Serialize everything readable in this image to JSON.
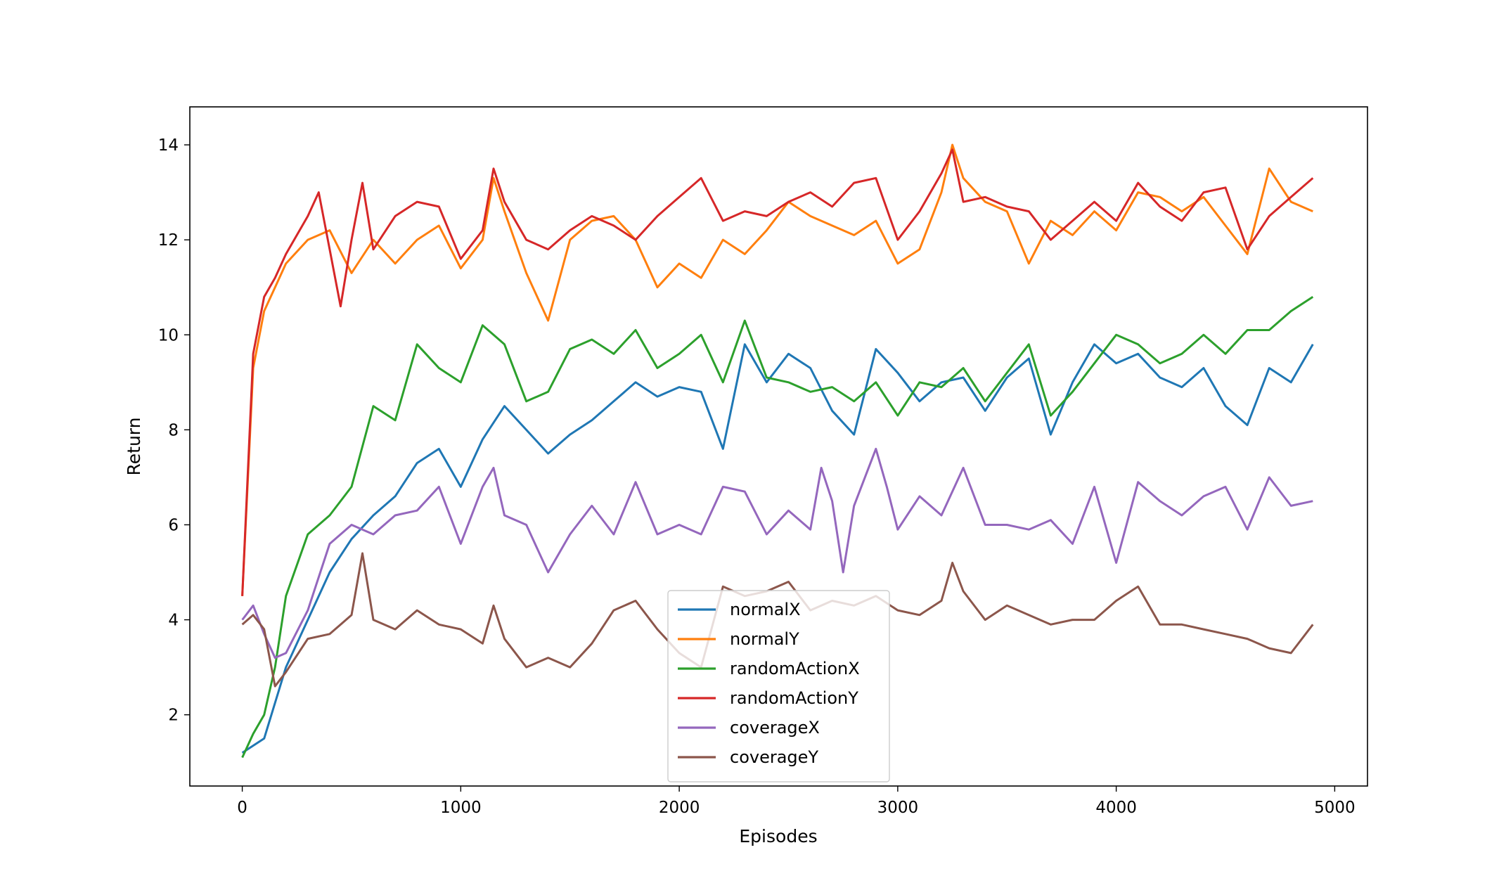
{
  "chart_data": {
    "type": "line",
    "title": "",
    "xlabel": "Episodes",
    "ylabel": "Return",
    "xlim": [
      -240,
      5150
    ],
    "ylim": [
      0.5,
      14.8
    ],
    "xticks": [
      0,
      1000,
      2000,
      3000,
      4000,
      5000
    ],
    "yticks": [
      2,
      4,
      6,
      8,
      10,
      12,
      14
    ],
    "grid": false,
    "legend_location": "lower-center",
    "series": [
      {
        "name": "normalX",
        "color": "#1f77b4",
        "x": [
          0,
          100,
          200,
          300,
          400,
          500,
          600,
          700,
          800,
          900,
          1000,
          1100,
          1200,
          1300,
          1400,
          1500,
          1600,
          1700,
          1800,
          1900,
          2000,
          2100,
          2200,
          2300,
          2400,
          2500,
          2600,
          2700,
          2800,
          2900,
          3000,
          3100,
          3200,
          3300,
          3400,
          3500,
          3600,
          3700,
          3800,
          3900,
          4000,
          4100,
          4200,
          4300,
          4400,
          4500,
          4600,
          4700,
          4800,
          4900
        ],
        "y": [
          1.2,
          1.5,
          3.0,
          4.0,
          5.0,
          5.7,
          6.2,
          6.6,
          7.3,
          7.6,
          6.8,
          7.8,
          8.5,
          8.0,
          7.5,
          7.9,
          8.2,
          8.6,
          9.0,
          8.7,
          8.9,
          8.8,
          7.6,
          9.8,
          9.0,
          9.6,
          9.3,
          8.4,
          7.9,
          9.7,
          9.2,
          8.6,
          9.0,
          9.1,
          8.4,
          9.1,
          9.5,
          7.9,
          9.0,
          9.8,
          9.4,
          9.6,
          9.1,
          8.9,
          9.3,
          8.5,
          8.1,
          9.3,
          9.0,
          9.8
        ]
      },
      {
        "name": "normalY",
        "color": "#ff7f0e",
        "x": [
          0,
          50,
          100,
          150,
          200,
          300,
          400,
          500,
          600,
          700,
          800,
          900,
          1000,
          1100,
          1150,
          1200,
          1300,
          1400,
          1500,
          1600,
          1700,
          1800,
          1900,
          2000,
          2100,
          2200,
          2300,
          2400,
          2500,
          2600,
          2700,
          2800,
          2900,
          3000,
          3100,
          3200,
          3250,
          3300,
          3400,
          3500,
          3600,
          3700,
          3800,
          3900,
          4000,
          4100,
          4200,
          4300,
          4400,
          4500,
          4600,
          4700,
          4800,
          4900
        ],
        "y": [
          4.5,
          9.3,
          10.5,
          11.0,
          11.5,
          12.0,
          12.2,
          11.3,
          12.0,
          11.5,
          12.0,
          12.3,
          11.4,
          12.0,
          13.3,
          12.6,
          11.3,
          10.3,
          12.0,
          12.4,
          12.5,
          12.0,
          11.0,
          11.5,
          11.2,
          12.0,
          11.7,
          12.2,
          12.8,
          12.5,
          12.3,
          12.1,
          12.4,
          11.5,
          11.8,
          13.0,
          14.0,
          13.3,
          12.8,
          12.6,
          11.5,
          12.4,
          12.1,
          12.6,
          12.2,
          13.0,
          12.9,
          12.6,
          12.9,
          12.3,
          11.7,
          13.5,
          12.8,
          12.6
        ]
      },
      {
        "name": "randomActionX",
        "color": "#2ca02c",
        "x": [
          0,
          50,
          100,
          150,
          200,
          300,
          400,
          500,
          600,
          700,
          800,
          900,
          1000,
          1100,
          1150,
          1200,
          1300,
          1400,
          1500,
          1600,
          1700,
          1800,
          1900,
          2000,
          2100,
          2200,
          2300,
          2400,
          2500,
          2600,
          2700,
          2800,
          2900,
          3000,
          3100,
          3200,
          3300,
          3400,
          3500,
          3600,
          3700,
          3800,
          3900,
          4000,
          4100,
          4200,
          4300,
          4400,
          4500,
          4600,
          4700,
          4800,
          4900
        ],
        "y": [
          1.1,
          1.6,
          2.0,
          3.0,
          4.5,
          5.8,
          6.2,
          6.8,
          8.5,
          8.2,
          9.8,
          9.3,
          9.0,
          10.2,
          10.0,
          9.8,
          8.6,
          8.8,
          9.7,
          9.9,
          9.6,
          10.1,
          9.3,
          9.6,
          10.0,
          9.0,
          10.3,
          9.1,
          9.0,
          8.8,
          8.9,
          8.6,
          9.0,
          8.3,
          9.0,
          8.9,
          9.3,
          8.6,
          9.2,
          9.8,
          8.3,
          8.8,
          9.4,
          10.0,
          9.8,
          9.4,
          9.6,
          10.0,
          9.6,
          10.1,
          10.1,
          10.5,
          10.8
        ]
      },
      {
        "name": "randomActionY",
        "color": "#d62728",
        "x": [
          0,
          50,
          100,
          150,
          200,
          300,
          350,
          400,
          450,
          500,
          550,
          600,
          700,
          800,
          900,
          1000,
          1100,
          1150,
          1200,
          1300,
          1400,
          1500,
          1600,
          1700,
          1800,
          1900,
          2000,
          2100,
          2200,
          2300,
          2400,
          2500,
          2600,
          2700,
          2800,
          2900,
          3000,
          3100,
          3200,
          3250,
          3300,
          3400,
          3500,
          3600,
          3700,
          3800,
          3900,
          4000,
          4100,
          4200,
          4300,
          4400,
          4500,
          4600,
          4700,
          4800,
          4900
        ],
        "y": [
          4.5,
          9.6,
          10.8,
          11.2,
          11.7,
          12.5,
          13.0,
          11.8,
          10.6,
          12.0,
          13.2,
          11.8,
          12.5,
          12.8,
          12.7,
          11.6,
          12.2,
          13.5,
          12.8,
          12.0,
          11.8,
          12.2,
          12.5,
          12.3,
          12.0,
          12.5,
          12.9,
          13.3,
          12.4,
          12.6,
          12.5,
          12.8,
          13.0,
          12.7,
          13.2,
          13.3,
          12.0,
          12.6,
          13.4,
          13.9,
          12.8,
          12.9,
          12.7,
          12.6,
          12.0,
          12.4,
          12.8,
          12.4,
          13.2,
          12.7,
          12.4,
          13.0,
          13.1,
          11.8,
          12.5,
          12.9,
          13.3
        ]
      },
      {
        "name": "coverageX",
        "color": "#9467bd",
        "x": [
          0,
          50,
          100,
          150,
          200,
          300,
          400,
          500,
          600,
          700,
          800,
          900,
          1000,
          1100,
          1150,
          1200,
          1300,
          1400,
          1500,
          1600,
          1700,
          1800,
          1900,
          2000,
          2100,
          2200,
          2300,
          2400,
          2500,
          2600,
          2650,
          2700,
          2750,
          2800,
          2900,
          2950,
          3000,
          3100,
          3200,
          3300,
          3400,
          3500,
          3600,
          3700,
          3800,
          3900,
          4000,
          4100,
          4200,
          4300,
          4400,
          4500,
          4600,
          4700,
          4800,
          4900
        ],
        "y": [
          4.0,
          4.3,
          3.7,
          3.2,
          3.3,
          4.2,
          5.6,
          6.0,
          5.8,
          6.2,
          6.3,
          6.8,
          5.6,
          6.8,
          7.2,
          6.2,
          6.0,
          5.0,
          5.8,
          6.4,
          5.8,
          6.9,
          5.8,
          6.0,
          5.8,
          6.8,
          6.7,
          5.8,
          6.3,
          5.9,
          7.2,
          6.5,
          5.0,
          6.4,
          7.6,
          6.8,
          5.9,
          6.6,
          6.2,
          7.2,
          6.0,
          6.0,
          5.9,
          6.1,
          5.6,
          6.8,
          5.2,
          6.9,
          6.5,
          6.2,
          6.6,
          6.8,
          5.9,
          7.0,
          6.4,
          6.5
        ]
      },
      {
        "name": "coverageY",
        "color": "#8c564b",
        "x": [
          0,
          50,
          100,
          150,
          200,
          300,
          400,
          500,
          550,
          600,
          700,
          800,
          900,
          1000,
          1100,
          1150,
          1200,
          1300,
          1400,
          1500,
          1600,
          1700,
          1800,
          1900,
          2000,
          2100,
          2200,
          2300,
          2400,
          2500,
          2600,
          2700,
          2800,
          2900,
          3000,
          3100,
          3200,
          3250,
          3300,
          3400,
          3500,
          3600,
          3700,
          3800,
          3900,
          4000,
          4100,
          4200,
          4300,
          4400,
          4500,
          4600,
          4700,
          4800,
          4900
        ],
        "y": [
          3.9,
          4.1,
          3.8,
          2.6,
          2.9,
          3.6,
          3.7,
          4.1,
          5.4,
          4.0,
          3.8,
          4.2,
          3.9,
          3.8,
          3.5,
          4.3,
          3.6,
          3.0,
          3.2,
          3.0,
          3.5,
          4.2,
          4.4,
          3.8,
          3.3,
          3.0,
          4.7,
          4.5,
          4.6,
          4.8,
          4.2,
          4.4,
          4.3,
          4.5,
          4.2,
          4.1,
          4.4,
          5.2,
          4.6,
          4.0,
          4.3,
          4.1,
          3.9,
          4.0,
          4.0,
          4.4,
          4.7,
          3.9,
          3.9,
          3.8,
          3.7,
          3.6,
          3.4,
          3.3,
          3.9
        ]
      }
    ]
  }
}
